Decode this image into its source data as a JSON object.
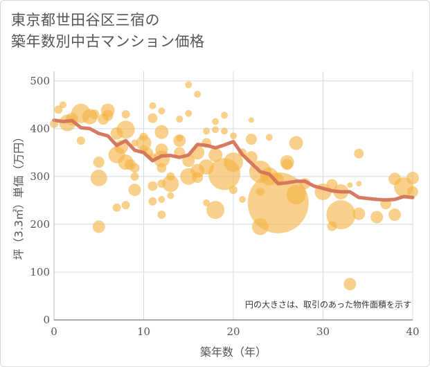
{
  "title_line1": "東京都世田谷区三宿の",
  "title_line2": "築年数別中古マンション価格",
  "colors": {
    "bubble": "#f3b343",
    "line": "#d4735a",
    "grid": "#cfdce8",
    "plot_bg": "#ffffff"
  },
  "chart_data": {
    "type": "scatter",
    "xlabel": "築年数（年）",
    "ylabel": "坪（3.3㎡）単価（万円）",
    "xlim": [
      0,
      40
    ],
    "ylim": [
      0,
      520
    ],
    "xticks": [
      0,
      10,
      20,
      30,
      40
    ],
    "yticks": [
      0,
      100,
      200,
      300,
      400,
      500
    ],
    "grid": true,
    "annotation": "円の大きさは、取引のあった物件面積を示す",
    "bubbles": [
      {
        "x": 0,
        "y": 410,
        "s": 6
      },
      {
        "x": 0.5,
        "y": 440,
        "s": 6
      },
      {
        "x": 1,
        "y": 450,
        "s": 5
      },
      {
        "x": 1.5,
        "y": 412,
        "s": 12
      },
      {
        "x": 2,
        "y": 420,
        "s": 9
      },
      {
        "x": 3,
        "y": 432,
        "s": 14
      },
      {
        "x": 3,
        "y": 375,
        "s": 6
      },
      {
        "x": 4,
        "y": 425,
        "s": 11
      },
      {
        "x": 4.5,
        "y": 430,
        "s": 7
      },
      {
        "x": 5,
        "y": 330,
        "s": 8
      },
      {
        "x": 5,
        "y": 297,
        "s": 12
      },
      {
        "x": 5,
        "y": 195,
        "s": 9
      },
      {
        "x": 5.5,
        "y": 420,
        "s": 8
      },
      {
        "x": 6,
        "y": 438,
        "s": 10
      },
      {
        "x": 6,
        "y": 428,
        "s": 8
      },
      {
        "x": 7,
        "y": 390,
        "s": 9
      },
      {
        "x": 7,
        "y": 345,
        "s": 12
      },
      {
        "x": 7,
        "y": 235,
        "s": 6
      },
      {
        "x": 7.5,
        "y": 362,
        "s": 10
      },
      {
        "x": 8,
        "y": 430,
        "s": 6
      },
      {
        "x": 8,
        "y": 398,
        "s": 13
      },
      {
        "x": 8,
        "y": 330,
        "s": 11
      },
      {
        "x": 8,
        "y": 240,
        "s": 6
      },
      {
        "x": 8.5,
        "y": 325,
        "s": 8
      },
      {
        "x": 9,
        "y": 370,
        "s": 5
      },
      {
        "x": 9,
        "y": 318,
        "s": 7
      },
      {
        "x": 9,
        "y": 300,
        "s": 6
      },
      {
        "x": 9,
        "y": 272,
        "s": 9
      },
      {
        "x": 10,
        "y": 370,
        "s": 11
      },
      {
        "x": 10,
        "y": 383,
        "s": 6
      },
      {
        "x": 10.5,
        "y": 350,
        "s": 7
      },
      {
        "x": 10,
        "y": 357,
        "s": 6
      },
      {
        "x": 11,
        "y": 448,
        "s": 5
      },
      {
        "x": 11,
        "y": 422,
        "s": 7
      },
      {
        "x": 11,
        "y": 340,
        "s": 6
      },
      {
        "x": 11,
        "y": 280,
        "s": 7
      },
      {
        "x": 11,
        "y": 248,
        "s": 6
      },
      {
        "x": 12,
        "y": 437,
        "s": 5
      },
      {
        "x": 12,
        "y": 393,
        "s": 10
      },
      {
        "x": 12,
        "y": 356,
        "s": 9
      },
      {
        "x": 12,
        "y": 337,
        "s": 12
      },
      {
        "x": 12,
        "y": 318,
        "s": 7
      },
      {
        "x": 12,
        "y": 285,
        "s": 6
      },
      {
        "x": 12,
        "y": 252,
        "s": 5
      },
      {
        "x": 12,
        "y": 220,
        "s": 6
      },
      {
        "x": 13,
        "y": 300,
        "s": 6
      },
      {
        "x": 13,
        "y": 285,
        "s": 12
      },
      {
        "x": 13,
        "y": 260,
        "s": 5
      },
      {
        "x": 14,
        "y": 420,
        "s": 5
      },
      {
        "x": 14,
        "y": 380,
        "s": 5
      },
      {
        "x": 14,
        "y": 375,
        "s": 9
      },
      {
        "x": 14,
        "y": 350,
        "s": 8
      },
      {
        "x": 15,
        "y": 492,
        "s": 5
      },
      {
        "x": 15,
        "y": 432,
        "s": 5
      },
      {
        "x": 15,
        "y": 300,
        "s": 12
      },
      {
        "x": 15,
        "y": 333,
        "s": 9
      },
      {
        "x": 16,
        "y": 472,
        "s": 5
      },
      {
        "x": 16,
        "y": 350,
        "s": 10
      },
      {
        "x": 16,
        "y": 312,
        "s": 10
      },
      {
        "x": 16,
        "y": 298,
        "s": 8
      },
      {
        "x": 17,
        "y": 395,
        "s": 5
      },
      {
        "x": 17,
        "y": 370,
        "s": 7
      },
      {
        "x": 17,
        "y": 320,
        "s": 11
      },
      {
        "x": 17,
        "y": 245,
        "s": 5
      },
      {
        "x": 18,
        "y": 415,
        "s": 5
      },
      {
        "x": 18,
        "y": 398,
        "s": 5
      },
      {
        "x": 18,
        "y": 345,
        "s": 10
      },
      {
        "x": 18,
        "y": 230,
        "s": 13
      },
      {
        "x": 19,
        "y": 428,
        "s": 5
      },
      {
        "x": 19,
        "y": 395,
        "s": 5
      },
      {
        "x": 19,
        "y": 305,
        "s": 23
      },
      {
        "x": 20,
        "y": 330,
        "s": 14
      },
      {
        "x": 20,
        "y": 272,
        "s": 6
      },
      {
        "x": 20,
        "y": 385,
        "s": 5
      },
      {
        "x": 21,
        "y": 350,
        "s": 6
      },
      {
        "x": 21,
        "y": 252,
        "s": 5
      },
      {
        "x": 22,
        "y": 418,
        "s": 4
      },
      {
        "x": 22,
        "y": 378,
        "s": 8
      },
      {
        "x": 22,
        "y": 340,
        "s": 9
      },
      {
        "x": 23,
        "y": 310,
        "s": 16
      },
      {
        "x": 23,
        "y": 268,
        "s": 6
      },
      {
        "x": 23,
        "y": 195,
        "s": 12
      },
      {
        "x": 24,
        "y": 382,
        "s": 5
      },
      {
        "x": 24,
        "y": 300,
        "s": 13
      },
      {
        "x": 25,
        "y": 245,
        "s": 44
      },
      {
        "x": 25,
        "y": 295,
        "s": 8
      },
      {
        "x": 26,
        "y": 330,
        "s": 10
      },
      {
        "x": 26,
        "y": 325,
        "s": 8
      },
      {
        "x": 27,
        "y": 370,
        "s": 10
      },
      {
        "x": 27,
        "y": 262,
        "s": 14
      },
      {
        "x": 28,
        "y": 285,
        "s": 8
      },
      {
        "x": 30,
        "y": 268,
        "s": 12
      },
      {
        "x": 31,
        "y": 283,
        "s": 8
      },
      {
        "x": 31,
        "y": 196,
        "s": 7
      },
      {
        "x": 32,
        "y": 268,
        "s": 11
      },
      {
        "x": 32,
        "y": 220,
        "s": 21
      },
      {
        "x": 33,
        "y": 75,
        "s": 9
      },
      {
        "x": 33,
        "y": 282,
        "s": 4
      },
      {
        "x": 34,
        "y": 348,
        "s": 7
      },
      {
        "x": 34,
        "y": 285,
        "s": 4
      },
      {
        "x": 34,
        "y": 222,
        "s": 9
      },
      {
        "x": 36,
        "y": 215,
        "s": 9
      },
      {
        "x": 37,
        "y": 243,
        "s": 8
      },
      {
        "x": 38,
        "y": 295,
        "s": 9
      },
      {
        "x": 38,
        "y": 220,
        "s": 9
      },
      {
        "x": 39,
        "y": 278,
        "s": 14
      },
      {
        "x": 40,
        "y": 297,
        "s": 9
      },
      {
        "x": 40,
        "y": 268,
        "s": 8
      }
    ],
    "line": {
      "x": [
        0,
        1,
        2,
        3,
        4,
        5,
        6,
        7,
        8,
        9,
        10,
        11,
        12,
        13,
        14,
        15,
        16,
        17,
        18,
        19,
        20,
        21,
        22,
        23,
        24,
        25,
        26,
        27,
        28,
        29,
        30,
        31,
        32,
        33,
        34,
        35,
        36,
        37,
        38,
        39,
        40
      ],
      "y": [
        418,
        415,
        417,
        402,
        400,
        390,
        385,
        365,
        375,
        355,
        350,
        333,
        343,
        344,
        340,
        345,
        367,
        365,
        360,
        366,
        373,
        346,
        328,
        310,
        305,
        285,
        287,
        290,
        290,
        280,
        275,
        270,
        268,
        268,
        256,
        254,
        252,
        251,
        252,
        258,
        256
      ]
    }
  }
}
